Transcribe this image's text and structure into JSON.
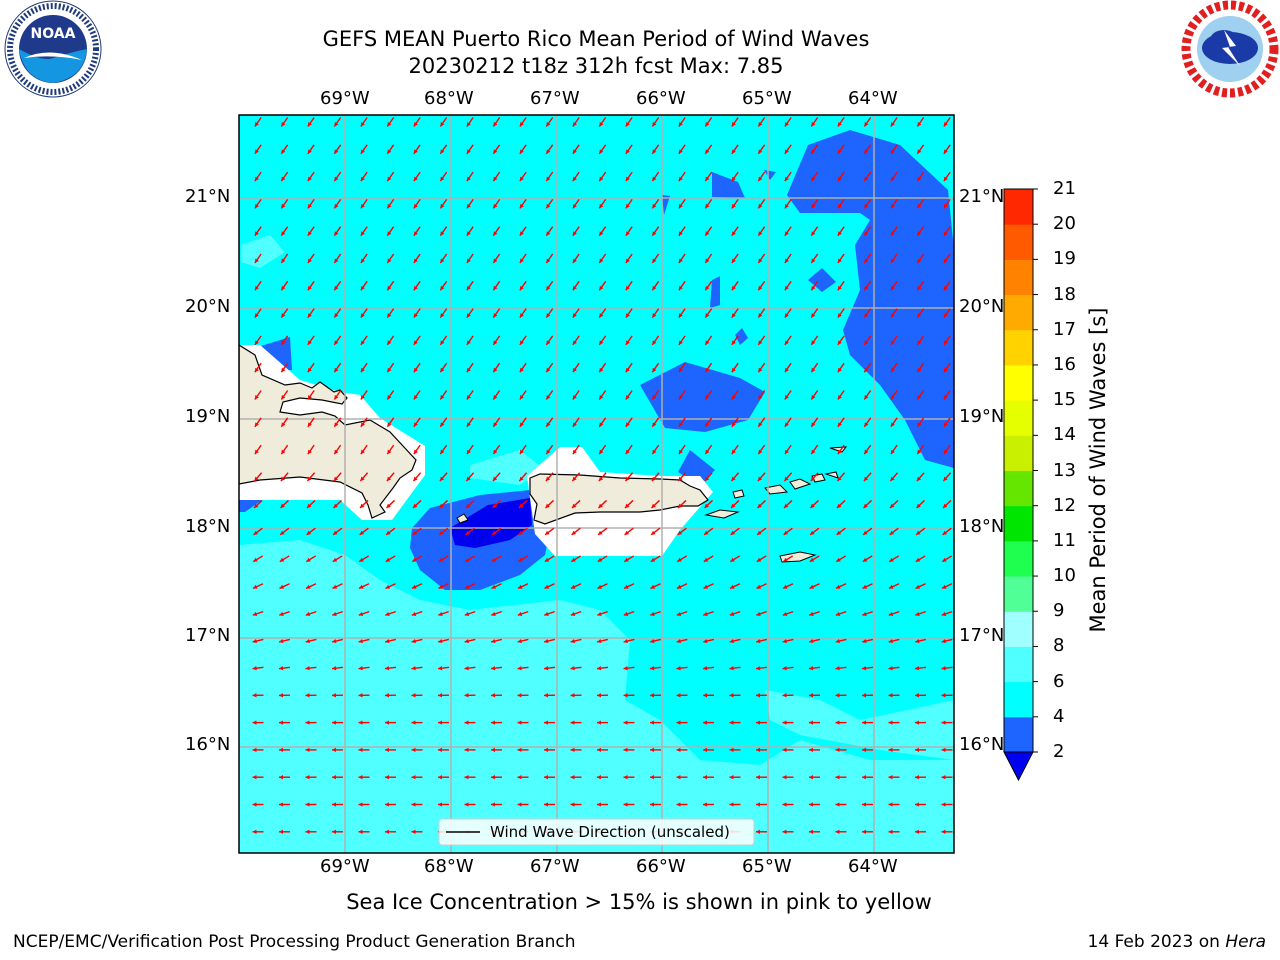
{
  "header": {
    "title_line1": "GEFS MEAN Puerto Rico Mean Period of Wind Waves",
    "title_line2": "20230212 t18z 312h fcst   Max: 7.85"
  },
  "logos": {
    "left": {
      "text": "NOAA",
      "ring_text": "NATIONAL OCEANIC AND ATMOSPHERIC ADMINISTRATION · U.S. DEPARTMENT OF COMMERCE"
    },
    "right": {
      "ring_text": "NATIONAL WEATHER SERVICE"
    }
  },
  "map": {
    "lon_labels": [
      "69°W",
      "68°W",
      "67°W",
      "66°W",
      "65°W",
      "64°W"
    ],
    "lat_labels": [
      "21°N",
      "20°N",
      "19°N",
      "18°N",
      "17°N",
      "16°N"
    ],
    "legend_label": "Wind Wave Direction (unscaled)",
    "colors": {
      "land": "#efecdc",
      "arrow": "#ff0000",
      "grid": "#b0b0b0"
    }
  },
  "colorbar": {
    "title": "Mean Period of Wind Waves [s]",
    "ticks": [
      "2",
      "4",
      "6",
      "8",
      "9",
      "10",
      "11",
      "12",
      "13",
      "14",
      "15",
      "16",
      "17",
      "18",
      "19",
      "20",
      "21"
    ],
    "colors": [
      "#0000f0",
      "#1e64ff",
      "#00ffff",
      "#50ffff",
      "#a0ffff",
      "#50ff96",
      "#1eff50",
      "#00e600",
      "#64e600",
      "#c8f000",
      "#e6ff00",
      "#ffff00",
      "#ffd200",
      "#ffaa00",
      "#ff8200",
      "#ff5a00",
      "#ff2800",
      "#ff0000"
    ]
  },
  "footer": {
    "note": "Sea Ice Concentration > 15% is shown in pink to yellow",
    "left": "NCEP/EMC/Verification Post Processing Product Generation Branch",
    "right_prefix": "14 Feb 2023 on ",
    "right_host": "Hera"
  }
}
